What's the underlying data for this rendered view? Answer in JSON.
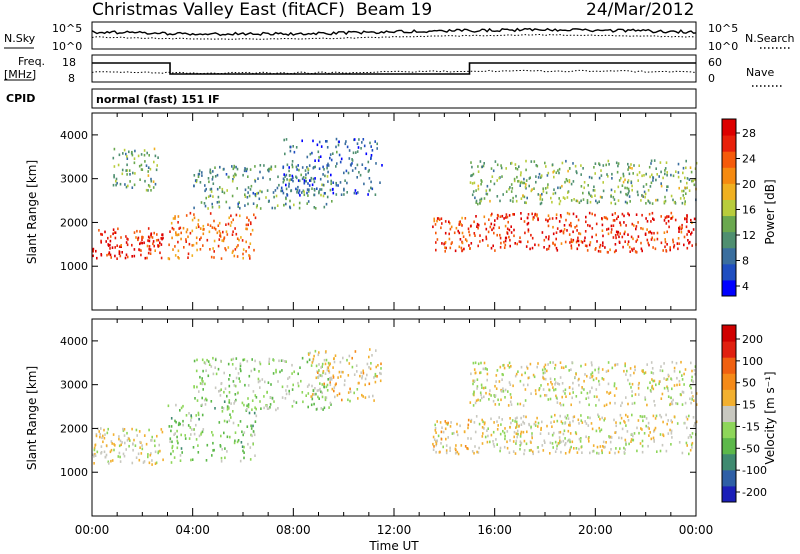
{
  "header": {
    "station": "Christmas Valley East (fitACF)",
    "beam": "Beam 19",
    "date": "24/Mar/2012"
  },
  "status_panels": {
    "nsky_label": "N.Sky",
    "nsearch_label": "N.Search",
    "noise_ticks": [
      "10^5",
      "10^0"
    ],
    "freq_label_1": "Freq.",
    "freq_label_2": "[MHz]",
    "freq_ticks": [
      "18",
      "8"
    ],
    "nave_label": "Nave",
    "nave_ticks": [
      "60",
      "0"
    ],
    "cpid_label": "CPID",
    "cpid_value": "normal (fast) 151 IF"
  },
  "colors": {
    "power_scale": [
      "#0000ff",
      "#1f4ec0",
      "#3a6e9e",
      "#4f8f70",
      "#6aa84f",
      "#b8cc3c",
      "#f0b020",
      "#f58a10",
      "#f55a0a",
      "#e8200a",
      "#dd0000"
    ],
    "velocity_scale": [
      "#1b1fb8",
      "#2e5fa6",
      "#3f8a70",
      "#5cb84a",
      "#8ed65a",
      "#c8c8c0",
      "#f2b030",
      "#f58a18",
      "#f06010",
      "#e02010",
      "#d00000"
    ],
    "noise_line": "#000000"
  },
  "chart_data": [
    {
      "type": "heatmap",
      "title": "Power",
      "xlabel": "Time UT",
      "ylabel": "Slant Range [km]",
      "xlim": [
        0,
        24
      ],
      "ylim": [
        0,
        4500
      ],
      "x_tick_labels": [
        "00:00",
        "04:00",
        "08:00",
        "12:00",
        "16:00",
        "20:00",
        "00:00"
      ],
      "y_ticks": [
        1000,
        2000,
        3000,
        4000
      ],
      "colorbar": {
        "label": "Power [dB]",
        "ticks": [
          "28",
          "24",
          "20",
          "16",
          "12",
          "8",
          "4"
        ],
        "range": [
          0,
          30
        ]
      },
      "echo_bands": [
        {
          "t": [
            0.0,
            2.8
          ],
          "range_km": [
            1150,
            1850
          ],
          "value": 26
        },
        {
          "t": [
            0.8,
            2.6
          ],
          "range_km": [
            2700,
            3700
          ],
          "value": 12
        },
        {
          "t": [
            3.0,
            6.5
          ],
          "range_km": [
            1150,
            2200
          ],
          "value": 22
        },
        {
          "t": [
            4.0,
            9.5
          ],
          "range_km": [
            2300,
            3300
          ],
          "value": 10
        },
        {
          "t": [
            7.5,
            11.5
          ],
          "range_km": [
            2600,
            3900
          ],
          "value": 6
        },
        {
          "t": [
            13.5,
            15.0
          ],
          "range_km": [
            1300,
            2100
          ],
          "value": 24
        },
        {
          "t": [
            15.0,
            24.0
          ],
          "range_km": [
            1300,
            2200
          ],
          "value": 26
        },
        {
          "t": [
            15.0,
            24.0
          ],
          "range_km": [
            2400,
            3400
          ],
          "value": 12
        }
      ]
    },
    {
      "type": "heatmap",
      "title": "Velocity",
      "xlabel": "Time UT",
      "ylabel": "Slant Range [km]",
      "xlim": [
        0,
        24
      ],
      "ylim": [
        0,
        4500
      ],
      "x_tick_labels": [
        "00:00",
        "04:00",
        "08:00",
        "12:00",
        "16:00",
        "20:00",
        "00:00"
      ],
      "y_ticks": [
        1000,
        2000,
        3000,
        4000
      ],
      "colorbar": {
        "label": "Velocity [m s⁻¹]",
        "ticks": [
          "200",
          "100",
          "50",
          "15",
          "-15",
          "-50",
          "-100",
          "-200"
        ],
        "range": [
          -250,
          250
        ]
      },
      "echo_bands": [
        {
          "t": [
            0.0,
            2.8
          ],
          "range_km": [
            1150,
            2000
          ],
          "value": 0
        },
        {
          "t": [
            3.0,
            6.5
          ],
          "range_km": [
            1200,
            2600
          ],
          "value": -60
        },
        {
          "t": [
            4.0,
            9.5
          ],
          "range_km": [
            2400,
            3600
          ],
          "value": -40
        },
        {
          "t": [
            8.5,
            11.5
          ],
          "range_km": [
            2600,
            3800
          ],
          "value": 20
        },
        {
          "t": [
            13.5,
            15.0
          ],
          "range_km": [
            1400,
            2200
          ],
          "value": 30
        },
        {
          "t": [
            15.0,
            24.0
          ],
          "range_km": [
            1400,
            2300
          ],
          "value": 0
        },
        {
          "t": [
            15.0,
            24.0
          ],
          "range_km": [
            2500,
            3500
          ],
          "value": 0
        }
      ]
    }
  ]
}
